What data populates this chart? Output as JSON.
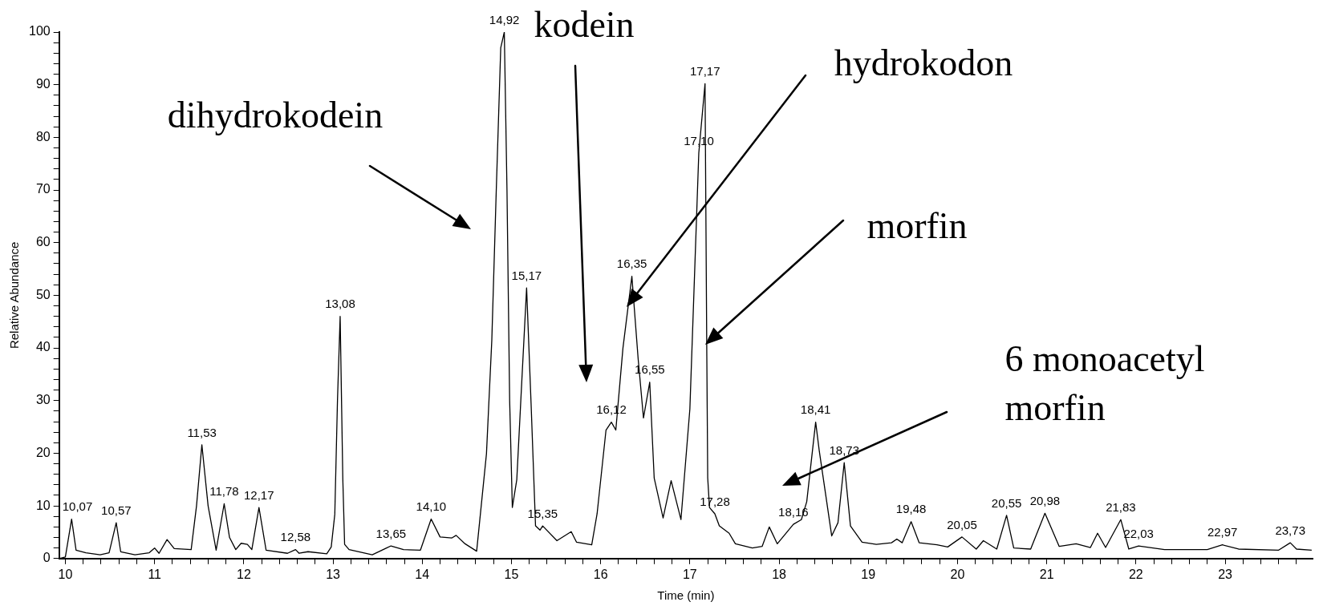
{
  "chart_data": {
    "type": "line",
    "xlabel": "Time (min)",
    "ylabel": "Relative Abundance",
    "xlim": [
      9.93,
      23.98
    ],
    "xticks": [
      10,
      {
        "value": 10.2,
        "label": null
      },
      {
        "value": 10.4,
        "label": null
      },
      {
        "value": 10.6,
        "label": null
      },
      {
        "value": 10.8,
        "label": null
      },
      11,
      {
        "value": 11.2,
        "label": null
      },
      {
        "value": 11.4,
        "label": null
      },
      {
        "value": 11.6,
        "label": null
      },
      {
        "value": 11.8,
        "label": null
      },
      12,
      {
        "value": 12.2,
        "label": null
      },
      {
        "value": 12.4,
        "label": null
      },
      {
        "value": 12.6,
        "label": null
      },
      {
        "value": 12.8,
        "label": null
      },
      13,
      {
        "value": 13.2,
        "label": null
      },
      {
        "value": 13.4,
        "label": null
      },
      {
        "value": 13.6,
        "label": null
      },
      {
        "value": 13.8,
        "label": null
      },
      14,
      {
        "value": 14.2,
        "label": null
      },
      {
        "value": 14.4,
        "label": null
      },
      {
        "value": 14.6,
        "label": null
      },
      {
        "value": 14.8,
        "label": null
      },
      15,
      {
        "value": 15.2,
        "label": null
      },
      {
        "value": 15.4,
        "label": null
      },
      {
        "value": 15.6,
        "label": null
      },
      {
        "value": 15.8,
        "label": null
      },
      16,
      {
        "value": 16.2,
        "label": null
      },
      {
        "value": 16.4,
        "label": null
      },
      {
        "value": 16.6,
        "label": null
      },
      {
        "value": 16.8,
        "label": null
      },
      17,
      {
        "value": 17.2,
        "label": null
      },
      {
        "value": 17.4,
        "label": null
      },
      {
        "value": 17.6,
        "label": null
      },
      {
        "value": 17.8,
        "label": null
      },
      18,
      {
        "value": 18.2,
        "label": null
      },
      {
        "value": 18.4,
        "label": null
      },
      {
        "value": 18.6,
        "label": null
      },
      {
        "value": 18.8,
        "label": null
      },
      19,
      {
        "value": 19.2,
        "label": null
      },
      {
        "value": 19.4,
        "label": null
      },
      {
        "value": 19.6,
        "label": null
      },
      {
        "value": 19.8,
        "label": null
      },
      20,
      {
        "value": 20.2,
        "label": null
      },
      {
        "value": 20.4,
        "label": null
      },
      {
        "value": 20.6,
        "label": null
      },
      {
        "value": 20.8,
        "label": null
      },
      21,
      {
        "value": 21.2,
        "label": null
      },
      {
        "value": 21.4,
        "label": null
      },
      {
        "value": 21.6,
        "label": null
      },
      {
        "value": 21.8,
        "label": null
      },
      22,
      {
        "value": 22.2,
        "label": null
      },
      {
        "value": 22.4,
        "label": null
      },
      {
        "value": 22.6,
        "label": null
      },
      {
        "value": 22.8,
        "label": null
      },
      23,
      {
        "value": 23.2,
        "label": null
      },
      {
        "value": 23.4,
        "label": null
      },
      {
        "value": 23.6,
        "label": null
      },
      {
        "value": 23.8,
        "label": null
      }
    ],
    "ylim": [
      0,
      100
    ],
    "yticks": [
      0,
      {
        "value": 2,
        "label": null
      },
      {
        "value": 4,
        "label": null
      },
      {
        "value": 6,
        "label": null
      },
      {
        "value": 8,
        "label": null
      },
      10,
      {
        "value": 12,
        "label": null
      },
      {
        "value": 14,
        "label": null
      },
      {
        "value": 16,
        "label": null
      },
      {
        "value": 18,
        "label": null
      },
      20,
      {
        "value": 22,
        "label": null
      },
      {
        "value": 24,
        "label": null
      },
      {
        "value": 26,
        "label": null
      },
      {
        "value": 28,
        "label": null
      },
      30,
      {
        "value": 32,
        "label": null
      },
      {
        "value": 34,
        "label": null
      },
      {
        "value": 36,
        "label": null
      },
      {
        "value": 38,
        "label": null
      },
      40,
      {
        "value": 42,
        "label": null
      },
      {
        "value": 44,
        "label": null
      },
      {
        "value": 46,
        "label": null
      },
      {
        "value": 48,
        "label": null
      },
      50,
      {
        "value": 52,
        "label": null
      },
      {
        "value": 54,
        "label": null
      },
      {
        "value": 56,
        "label": null
      },
      {
        "value": 58,
        "label": null
      },
      60,
      {
        "value": 62,
        "label": null
      },
      {
        "value": 64,
        "label": null
      },
      {
        "value": 66,
        "label": null
      },
      {
        "value": 68,
        "label": null
      },
      70,
      {
        "value": 72,
        "label": null
      },
      {
        "value": 74,
        "label": null
      },
      {
        "value": 76,
        "label": null
      },
      {
        "value": 78,
        "label": null
      },
      80,
      {
        "value": 82,
        "label": null
      },
      {
        "value": 84,
        "label": null
      },
      {
        "value": 86,
        "label": null
      },
      {
        "value": 88,
        "label": null
      },
      90,
      {
        "value": 92,
        "label": null
      },
      {
        "value": 94,
        "label": null
      },
      {
        "value": 96,
        "label": null
      },
      {
        "value": 98,
        "label": null
      },
      100
    ],
    "grid": false,
    "legend": false,
    "series": [
      {
        "color": "#000000",
        "x": [
          9.93,
          10.0,
          10.07,
          10.12,
          10.23,
          10.39,
          10.49,
          10.57,
          10.62,
          10.78,
          10.94,
          11.0,
          11.05,
          11.14,
          11.22,
          11.41,
          11.47,
          11.53,
          11.6,
          11.69,
          11.78,
          11.84,
          11.91,
          11.97,
          12.04,
          12.09,
          12.17,
          12.25,
          12.49,
          12.58,
          12.62,
          12.72,
          12.93,
          12.98,
          13.02,
          13.05,
          13.08,
          13.11,
          13.13,
          13.18,
          13.44,
          13.6,
          13.65,
          13.79,
          13.98,
          14.1,
          14.2,
          14.33,
          14.38,
          14.48,
          14.61,
          14.72,
          14.78,
          14.83,
          14.88,
          14.92,
          14.95,
          14.98,
          15.01,
          15.06,
          15.12,
          15.17,
          15.22,
          15.27,
          15.32,
          15.35,
          15.51,
          15.67,
          15.73,
          15.9,
          15.96,
          16.06,
          16.12,
          16.17,
          16.25,
          16.35,
          16.42,
          16.48,
          16.55,
          16.6,
          16.7,
          16.79,
          16.9,
          17.0,
          17.1,
          17.17,
          17.19,
          17.2,
          17.22,
          17.28,
          17.33,
          17.44,
          17.51,
          17.7,
          17.81,
          17.89,
          17.98,
          18.16,
          18.25,
          18.31,
          18.41,
          18.45,
          18.59,
          18.66,
          18.73,
          18.8,
          18.93,
          19.09,
          19.26,
          19.32,
          19.38,
          19.48,
          19.57,
          19.77,
          19.89,
          20.05,
          20.21,
          20.29,
          20.44,
          20.55,
          20.63,
          20.82,
          20.98,
          21.14,
          21.33,
          21.49,
          21.57,
          21.66,
          21.83,
          21.92,
          22.03,
          22.32,
          22.8,
          22.97,
          23.15,
          23.6,
          23.73,
          23.8,
          23.97
        ],
        "values": [
          0,
          0.3,
          7.5,
          1.6,
          1.1,
          0.7,
          1.1,
          6.8,
          1.3,
          0.7,
          1.1,
          2.0,
          1.0,
          3.6,
          1.9,
          1.7,
          10,
          21.6,
          10,
          1.6,
          10.4,
          4,
          1.7,
          2.9,
          2.7,
          1.7,
          9.7,
          1.6,
          1.0,
          1.7,
          1.0,
          1.3,
          0.9,
          2.2,
          8.4,
          30,
          46,
          15,
          2.7,
          1.7,
          0.7,
          2.0,
          2.4,
          1.7,
          1.6,
          7.5,
          4.1,
          3.9,
          4.4,
          2.8,
          1.4,
          19.9,
          41.5,
          70,
          97,
          100,
          70,
          30,
          9.7,
          15,
          35,
          51.4,
          29.5,
          6.2,
          5.4,
          6.2,
          3.4,
          5.1,
          3.1,
          2.6,
          8.5,
          24.4,
          25.9,
          24.4,
          40,
          53.6,
          38,
          26.7,
          33.5,
          15.3,
          7.7,
          14.8,
          7.4,
          28.4,
          77,
          90.2,
          38.4,
          15.3,
          9.7,
          8.5,
          6.2,
          4.8,
          2.8,
          2.0,
          2.3,
          6.0,
          2.8,
          6.5,
          7.4,
          10.8,
          25.9,
          20.5,
          4.3,
          6.8,
          18.2,
          6.2,
          3.1,
          2.7,
          3.0,
          3.7,
          3.0,
          7.0,
          3.0,
          2.6,
          2.2,
          4.1,
          1.8,
          3.4,
          1.8,
          8.2,
          2.0,
          1.8,
          8.6,
          2.3,
          2.8,
          2.1,
          4.8,
          2.1,
          7.4,
          1.8,
          2.4,
          1.7,
          1.7,
          2.6,
          1.8,
          1.6,
          3.0,
          1.8,
          1.6
        ]
      }
    ],
    "annotations": [
      "dihydrokodein",
      "kodein",
      "hydrokodon",
      "morfin",
      "6 monoacetyl\nmorfin",
      {
        "text": "10,07",
        "x": 10.07,
        "y": 7.5
      },
      {
        "text": "10,57",
        "x": 10.57,
        "y": 6.8
      },
      {
        "text": "11,53",
        "x": 11.53,
        "y": 21.6
      },
      {
        "text": "11,78",
        "x": 11.78,
        "y": 10.4
      },
      {
        "text": "12,17",
        "x": 12.17,
        "y": 9.7
      },
      {
        "text": "12,58",
        "x": 12.58,
        "y": 1.7
      },
      {
        "text": "13,08",
        "x": 13.08,
        "y": 46
      },
      {
        "text": "13,65",
        "x": 13.65,
        "y": 2.4
      },
      {
        "text": "14,10",
        "x": 14.1,
        "y": 7.5
      },
      {
        "text": "14,92",
        "x": 14.92,
        "y": 100
      },
      {
        "text": "15,17",
        "x": 15.17,
        "y": 51.4
      },
      {
        "text": "15,35",
        "x": 15.35,
        "y": 6.2
      },
      {
        "text": "16,12",
        "x": 16.12,
        "y": 25.9
      },
      {
        "text": "16,35",
        "x": 16.35,
        "y": 53.6
      },
      {
        "text": "16,55",
        "x": 16.55,
        "y": 33.5
      },
      {
        "text": "17,10",
        "x": 17.1,
        "y": 77
      },
      {
        "text": "17,17",
        "x": 17.17,
        "y": 90.2
      },
      {
        "text": "17,28",
        "x": 17.28,
        "y": 8.5
      },
      {
        "text": "18,16",
        "x": 18.16,
        "y": 6.5
      },
      {
        "text": "18,41",
        "x": 18.41,
        "y": 25.9
      },
      {
        "text": "18,73",
        "x": 18.73,
        "y": 18.2
      },
      {
        "text": "19,48",
        "x": 19.48,
        "y": 7.0
      },
      {
        "text": "20,05",
        "x": 20.05,
        "y": 4.1
      },
      {
        "text": "20,55",
        "x": 20.55,
        "y": 8.2
      },
      {
        "text": "20,98",
        "x": 20.98,
        "y": 8.6
      },
      {
        "text": "21,83",
        "x": 21.83,
        "y": 7.4
      },
      {
        "text": "22,03",
        "x": 22.03,
        "y": 2.4
      },
      {
        "text": "22,97",
        "x": 22.97,
        "y": 2.6
      },
      {
        "text": "23,73",
        "x": 23.73,
        "y": 3.0
      }
    ]
  }
}
